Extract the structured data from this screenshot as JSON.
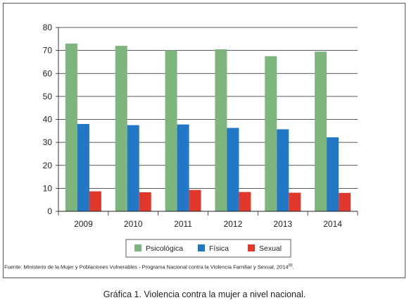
{
  "chart_data": {
    "type": "bar",
    "categories": [
      "2009",
      "2010",
      "2011",
      "2012",
      "2013",
      "2014"
    ],
    "series": [
      {
        "name": "Psicológica",
        "values": [
          73,
          72,
          70,
          70.5,
          67.5,
          69.5
        ]
      },
      {
        "name": "Física",
        "values": [
          38,
          37.5,
          37.8,
          36.3,
          35.7,
          32.2
        ]
      },
      {
        "name": "Sexual",
        "values": [
          8.7,
          8.3,
          9.3,
          8.4,
          8.1,
          8.0
        ]
      }
    ],
    "colors": [
      "#7db57d",
      "#2277c6",
      "#e0392b"
    ],
    "ylim": [
      0,
      80
    ],
    "yticks": [
      0,
      10,
      20,
      30,
      40,
      50,
      60,
      70,
      80
    ],
    "grid": true,
    "legend_position": "bottom"
  },
  "source_text": "Fuente: Ministerio de la Mujer y Poblaciones Vulnerables - Programa Nacional contra la Violencia Familiar y Sexual, 2014",
  "source_note": "(8)",
  "caption": "Gráfica 1. Violencia contra la mujer a nivel nacional."
}
